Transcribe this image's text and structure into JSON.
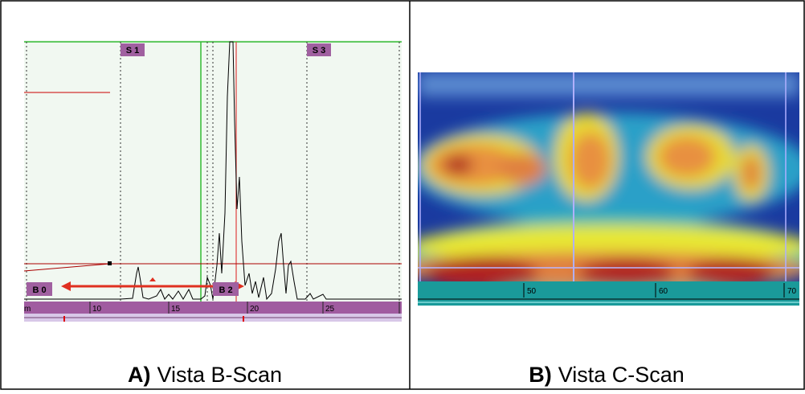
{
  "panel_a": {
    "markers": {
      "s1": "S 1",
      "s3": "S 3",
      "b0": "B 0",
      "b2": "B 2"
    },
    "axis_unit": "m",
    "axis_labels": [
      "10",
      "15",
      "20",
      "25"
    ],
    "caption": {
      "letter": "A)",
      "text": "Vista B-Scan"
    }
  },
  "panel_b": {
    "axis_labels": [
      "50",
      "60",
      "70"
    ],
    "caption": {
      "letter": "B)",
      "text": "Vista C-Scan"
    }
  }
}
